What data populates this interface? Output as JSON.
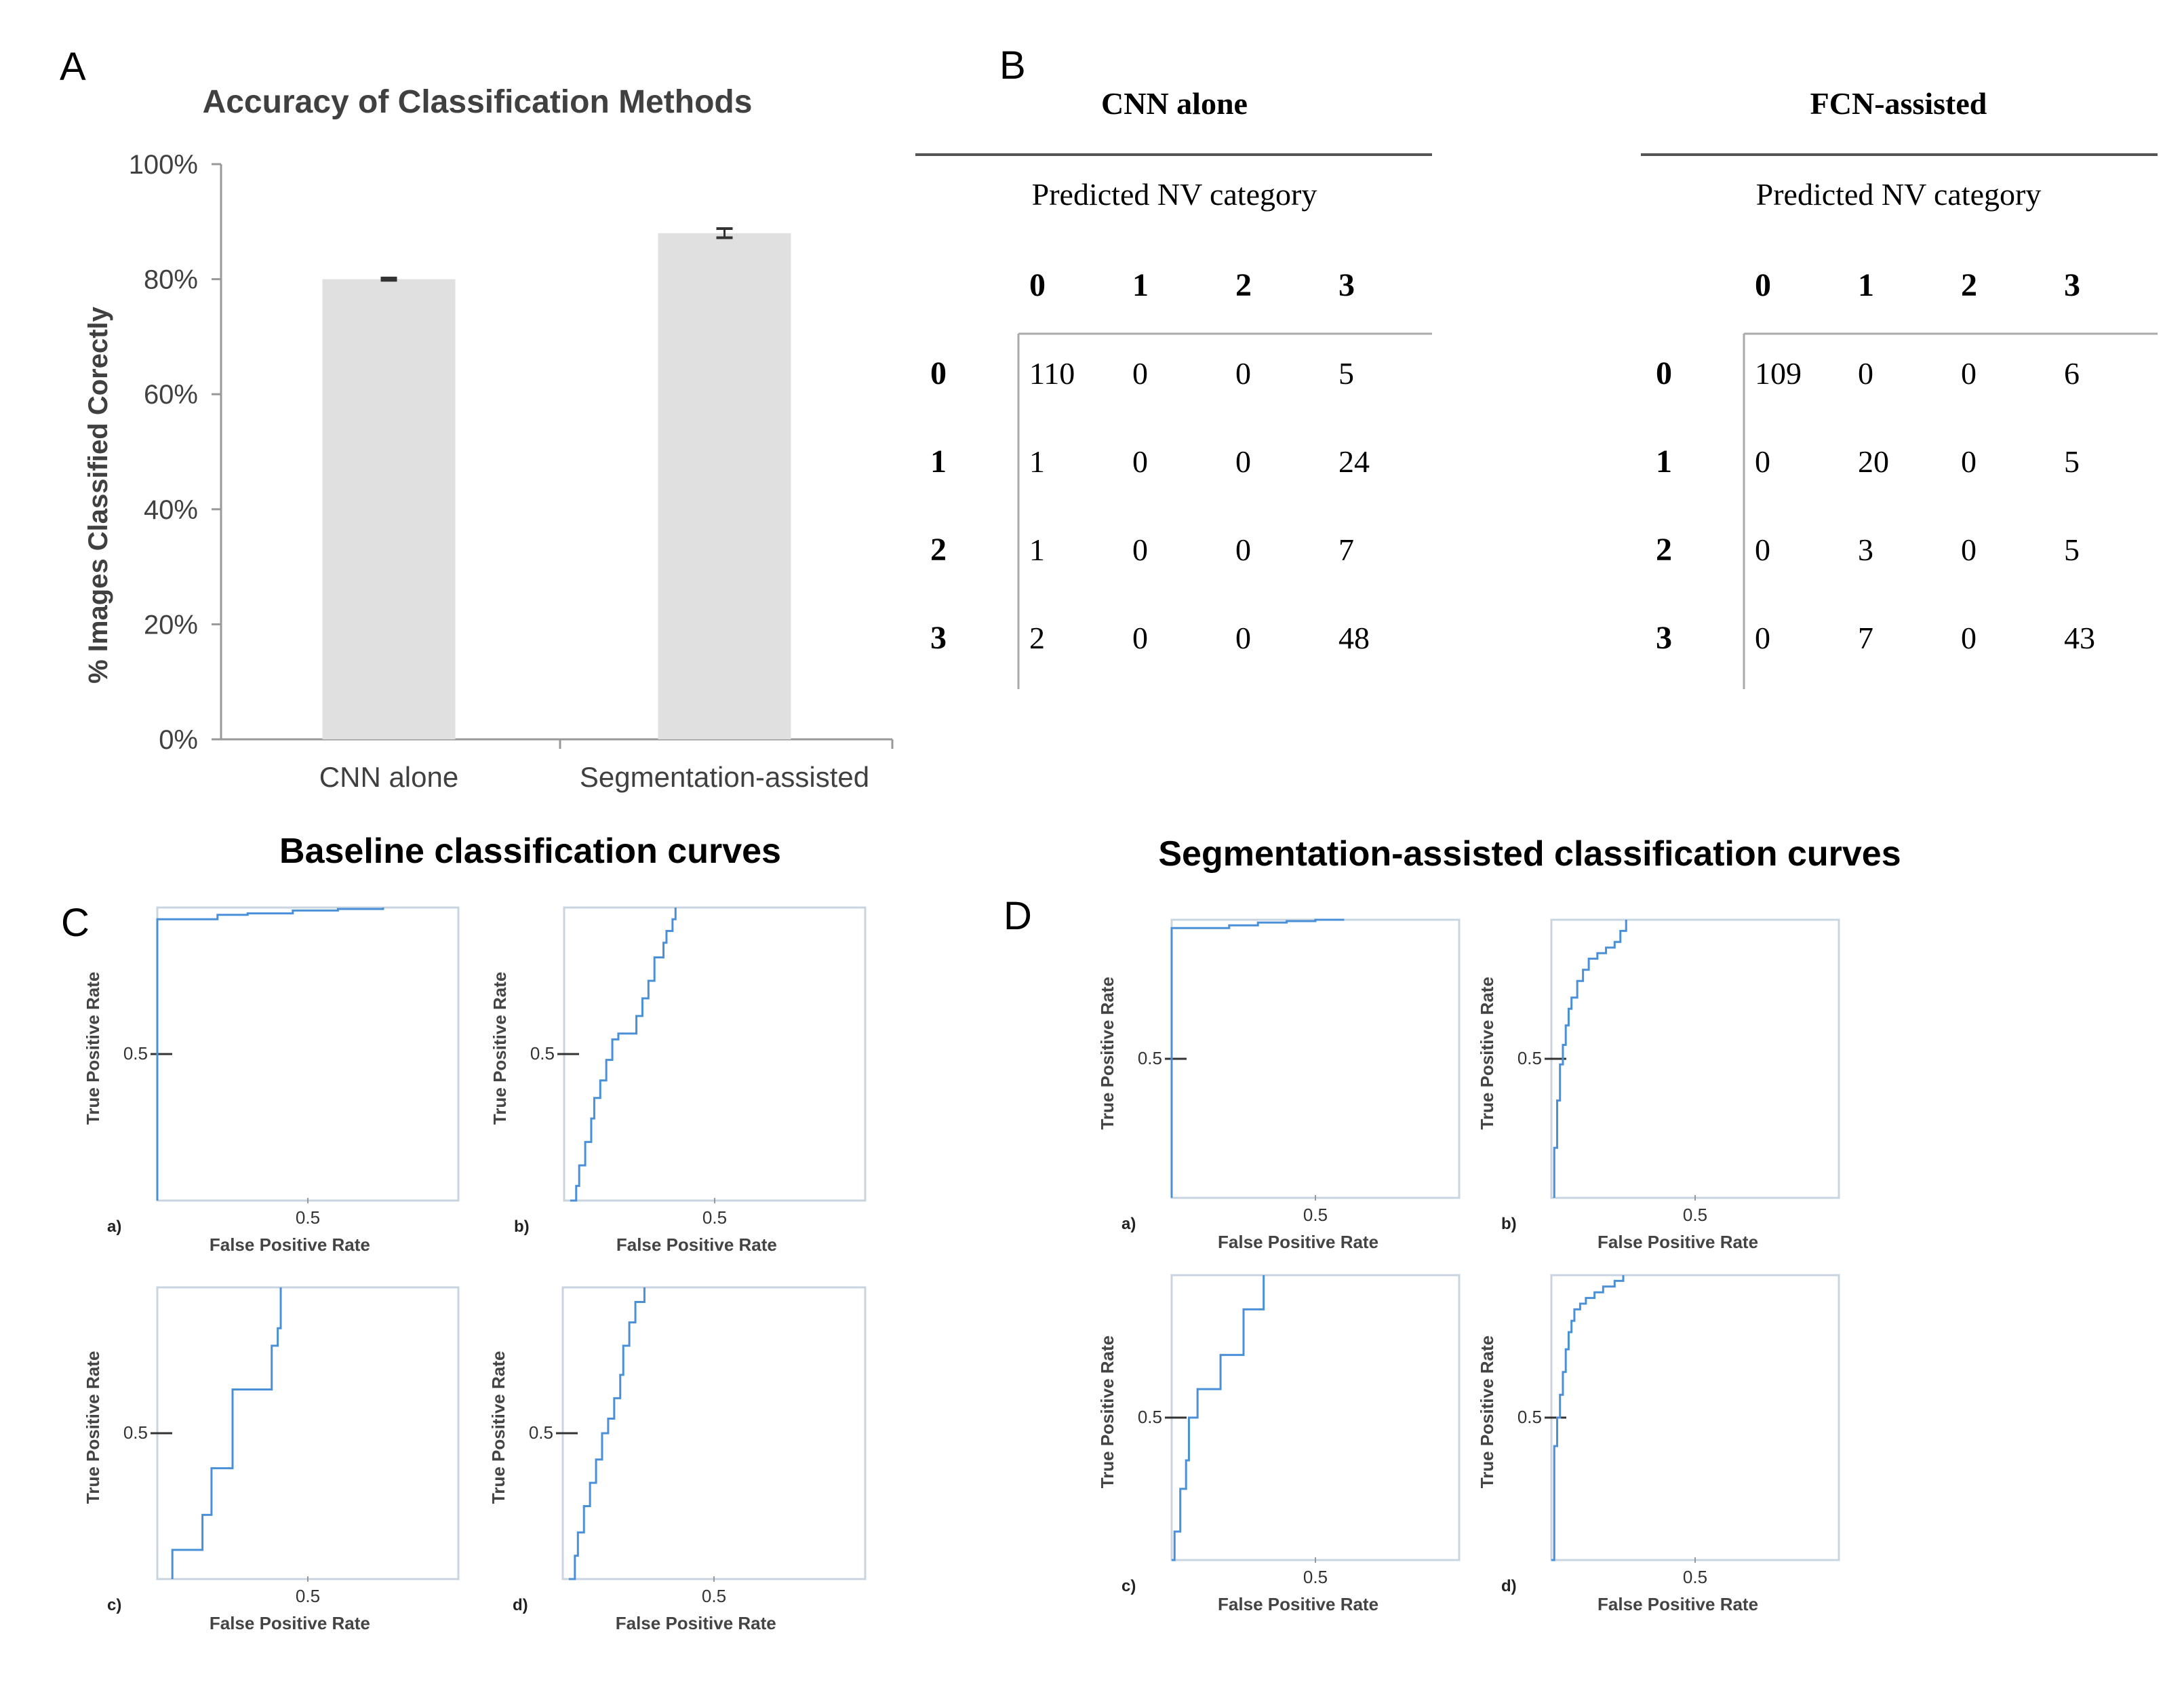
{
  "panels": {
    "a": {
      "letter": "A",
      "chart_data": {
        "type": "bar",
        "title": "Accuracy of Classification Methods",
        "categories": [
          "CNN alone",
          "Segmentation-assisted"
        ],
        "values": [
          80,
          88
        ],
        "errors": [
          0.2,
          0.8
        ],
        "ylabel": "% Images Classified Corectly",
        "xlabel": "",
        "ylim": [
          0,
          100
        ],
        "yticks": [
          "0%",
          "20%",
          "40%",
          "60%",
          "80%",
          "100%"
        ],
        "bar_color": "#e0e0e0"
      }
    },
    "b": {
      "letter": "B",
      "tables": [
        {
          "type": "table",
          "title": "CNN alone",
          "subtitle": "Predicted NV category",
          "col_headers": [
            "0",
            "1",
            "2",
            "3"
          ],
          "rows": [
            {
              "label": "0",
              "cells": [
                "110",
                "0",
                "0",
                "5"
              ]
            },
            {
              "label": "1",
              "cells": [
                "1",
                "0",
                "0",
                "24"
              ]
            },
            {
              "label": "2",
              "cells": [
                "1",
                "0",
                "0",
                "7"
              ]
            },
            {
              "label": "3",
              "cells": [
                "2",
                "0",
                "0",
                "48"
              ]
            }
          ]
        },
        {
          "type": "table",
          "title": "FCN-assisted",
          "subtitle": "Predicted NV category",
          "col_headers": [
            "0",
            "1",
            "2",
            "3"
          ],
          "rows": [
            {
              "label": "0",
              "cells": [
                "109",
                "0",
                "0",
                "6"
              ]
            },
            {
              "label": "1",
              "cells": [
                "0",
                "20",
                "0",
                "5"
              ]
            },
            {
              "label": "2",
              "cells": [
                "0",
                "3",
                "0",
                "5"
              ]
            },
            {
              "label": "3",
              "cells": [
                "0",
                "7",
                "0",
                "43"
              ]
            }
          ]
        }
      ]
    },
    "c": {
      "letter": "C",
      "title": "Baseline classification curves",
      "plots": [
        {
          "type": "line",
          "tag": "a)",
          "xlabel": "False Positive Rate",
          "ylabel": "True Positive Rate",
          "xtick": "0.5",
          "ytick": "0.5",
          "line_color": "#4a90d9",
          "x": [
            0,
            0,
            0.08,
            0.2,
            0.3,
            0.45,
            0.6,
            0.75
          ],
          "y": [
            0,
            0.96,
            0.96,
            0.975,
            0.98,
            0.99,
            0.995,
            1.0
          ]
        },
        {
          "type": "line",
          "tag": "b)",
          "xlabel": "False Positive Rate",
          "ylabel": "True Positive Rate",
          "xtick": "0.5",
          "ytick": "0.5",
          "line_color": "#4a90d9",
          "x": [
            0.02,
            0.04,
            0.05,
            0.07,
            0.09,
            0.1,
            0.12,
            0.14,
            0.16,
            0.18,
            0.22,
            0.24,
            0.26,
            0.28,
            0.3,
            0.32,
            0.33,
            0.34,
            0.36,
            0.37
          ],
          "y": [
            0,
            0.05,
            0.12,
            0.2,
            0.28,
            0.35,
            0.41,
            0.48,
            0.55,
            0.57,
            0.57,
            0.63,
            0.69,
            0.75,
            0.83,
            0.83,
            0.88,
            0.92,
            0.96,
            1.0
          ]
        },
        {
          "type": "line",
          "tag": "c)",
          "xlabel": "False Positive Rate",
          "ylabel": "True Positive Rate",
          "xtick": "0.5",
          "ytick": "0.5",
          "line_color": "#4a90d9",
          "x": [
            0.05,
            0.05,
            0.15,
            0.15,
            0.18,
            0.2,
            0.25,
            0.25,
            0.38,
            0.38,
            0.4,
            0.41,
            0.41
          ],
          "y": [
            0,
            0.1,
            0.1,
            0.22,
            0.38,
            0.38,
            0.38,
            0.65,
            0.65,
            0.8,
            0.86,
            0.86,
            1.0
          ]
        },
        {
          "type": "line",
          "tag": "d)",
          "xlabel": "False Positive Rate",
          "ylabel": "True Positive Rate",
          "xtick": "0.5",
          "ytick": "0.5",
          "line_color": "#4a90d9",
          "x": [
            0.02,
            0.04,
            0.05,
            0.07,
            0.09,
            0.11,
            0.13,
            0.15,
            0.17,
            0.19,
            0.2,
            0.22,
            0.24,
            0.27
          ],
          "y": [
            0,
            0.08,
            0.16,
            0.25,
            0.33,
            0.41,
            0.5,
            0.55,
            0.62,
            0.7,
            0.8,
            0.88,
            0.95,
            1.0
          ]
        }
      ]
    },
    "d": {
      "letter": "D",
      "title": "Segmentation-assisted classification curves",
      "plots": [
        {
          "type": "line",
          "tag": "a)",
          "xlabel": "False Positive Rate",
          "ylabel": "True Positive Rate",
          "xtick": "0.5",
          "ytick": "0.5",
          "line_color": "#4a90d9",
          "x": [
            0,
            0,
            0.1,
            0.2,
            0.3,
            0.4,
            0.5,
            0.6
          ],
          "y": [
            0,
            0.97,
            0.97,
            0.98,
            0.99,
            0.995,
            1.0,
            1.0
          ]
        },
        {
          "type": "line",
          "tag": "b)",
          "xlabel": "False Positive Rate",
          "ylabel": "True Positive Rate",
          "xtick": "0.5",
          "ytick": "0.5",
          "line_color": "#4a90d9",
          "x": [
            0.01,
            0.01,
            0.02,
            0.03,
            0.04,
            0.05,
            0.06,
            0.07,
            0.09,
            0.11,
            0.13,
            0.16,
            0.19,
            0.22,
            0.24,
            0.26
          ],
          "y": [
            0,
            0.18,
            0.35,
            0.48,
            0.55,
            0.62,
            0.68,
            0.72,
            0.78,
            0.82,
            0.86,
            0.88,
            0.9,
            0.92,
            0.96,
            1.0
          ]
        },
        {
          "type": "line",
          "tag": "c)",
          "xlabel": "False Positive Rate",
          "ylabel": "True Positive Rate",
          "xtick": "0.5",
          "ytick": "0.5",
          "line_color": "#4a90d9",
          "x": [
            0,
            0.01,
            0.01,
            0.03,
            0.05,
            0.06,
            0.06,
            0.09,
            0.09,
            0.17,
            0.17,
            0.25,
            0.25,
            0.32,
            0.32
          ],
          "y": [
            0,
            0,
            0.1,
            0.25,
            0.35,
            0.5,
            0.5,
            0.5,
            0.6,
            0.6,
            0.72,
            0.72,
            0.88,
            0.88,
            1.0
          ]
        },
        {
          "type": "line",
          "tag": "d)",
          "xlabel": "False Positive Rate",
          "ylabel": "True Positive Rate",
          "xtick": "0.5",
          "ytick": "0.5",
          "line_color": "#4a90d9",
          "x": [
            0,
            0.01,
            0.02,
            0.03,
            0.04,
            0.05,
            0.06,
            0.07,
            0.08,
            0.1,
            0.12,
            0.15,
            0.18,
            0.22,
            0.25
          ],
          "y": [
            0,
            0.4,
            0.5,
            0.58,
            0.66,
            0.74,
            0.8,
            0.84,
            0.88,
            0.9,
            0.92,
            0.94,
            0.96,
            0.98,
            1.0
          ]
        }
      ]
    }
  }
}
